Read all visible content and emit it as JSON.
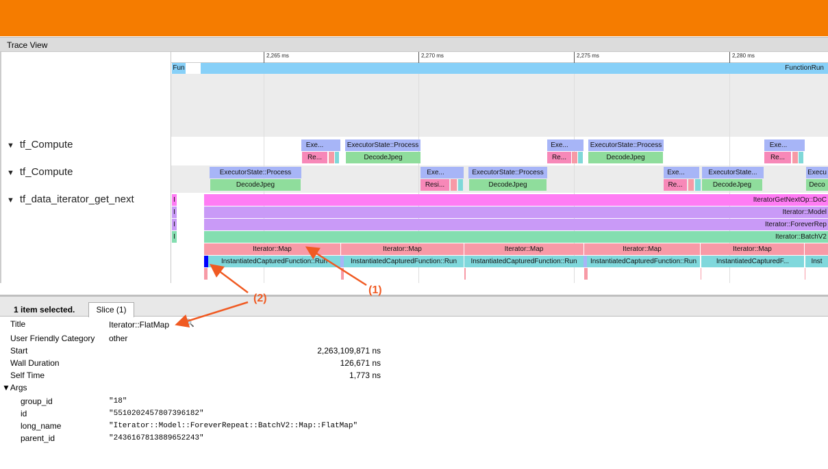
{
  "window": {
    "title": "Trace View"
  },
  "ruler": {
    "ticks": [
      "2,265 ms",
      "2,270 ms",
      "2,275 ms",
      "2,280 ms"
    ]
  },
  "tracks": {
    "process_row": {
      "fun": "Fun",
      "function_run": "FunctionRun"
    },
    "labels": [
      "tf_Compute",
      "tf_Compute",
      "tf_data_iterator_get_next"
    ],
    "expand_glyph": "▼",
    "t1_top": [
      "Exe...",
      "ExecutorState::Process",
      "Exe...",
      "ExecutorState::Process",
      "Exe..."
    ],
    "t1_bot": [
      "Re...",
      "DecodeJpeg",
      "Re...",
      "DecodeJpeg",
      "Re..."
    ],
    "t2_top": [
      "ExecutorState::Process",
      "Exe...",
      "ExecutorState::Process",
      "Exe...",
      "ExecutorState...",
      "Execu"
    ],
    "t2_bot": [
      "DecodeJpeg",
      "Resi...",
      "DecodeJpeg",
      "Re...",
      "DecodeJpeg",
      "Deco"
    ],
    "small_i": "I",
    "data_rows": [
      "IteratorGetNextOp::DoC",
      "Iterator::Model",
      "Iterator::ForeverRep",
      "Iterator::BatchV2"
    ],
    "map": [
      "Iterator::Map",
      "Iterator::Map",
      "Iterator::Map",
      "Iterator::Map",
      "Iterator::Map"
    ],
    "icf": [
      "InstantiatedCapturedFunction::Run",
      "InstantiatedCapturedFunction::Run",
      "InstantiatedCapturedFunction::Run",
      "InstantiatedCapturedFunction::Run",
      "InstantiatedCapturedF...",
      "Inst"
    ]
  },
  "annotations": {
    "one": "(1)",
    "two": "(2)",
    "color": "#f05a22"
  },
  "details": {
    "selected_text": "1 item selected.",
    "tab": "Slice (1)",
    "fields": [
      {
        "label": "Title",
        "value": "Iterator::FlatMap"
      },
      {
        "label": "User Friendly Category",
        "value": "other"
      },
      {
        "label": "Start",
        "value": "2,263,109,871 ns"
      },
      {
        "label": "Wall Duration",
        "value": "126,671 ns"
      },
      {
        "label": "Self Time",
        "value": "1,773 ns"
      }
    ],
    "args_label": "▼Args",
    "args": [
      {
        "key": "group_id",
        "value": "\"18\""
      },
      {
        "key": "id",
        "value": "\"5510202457807396182\""
      },
      {
        "key": "long_name",
        "value": "\"Iterator::Model::ForeverRepeat::BatchV2::Map::FlatMap\""
      },
      {
        "key": "parent_id",
        "value": "\"2436167813889652243\""
      }
    ]
  },
  "colors": {
    "header": "#f57c00",
    "function_run": "#87d0f8",
    "selected": "#0000ff"
  }
}
